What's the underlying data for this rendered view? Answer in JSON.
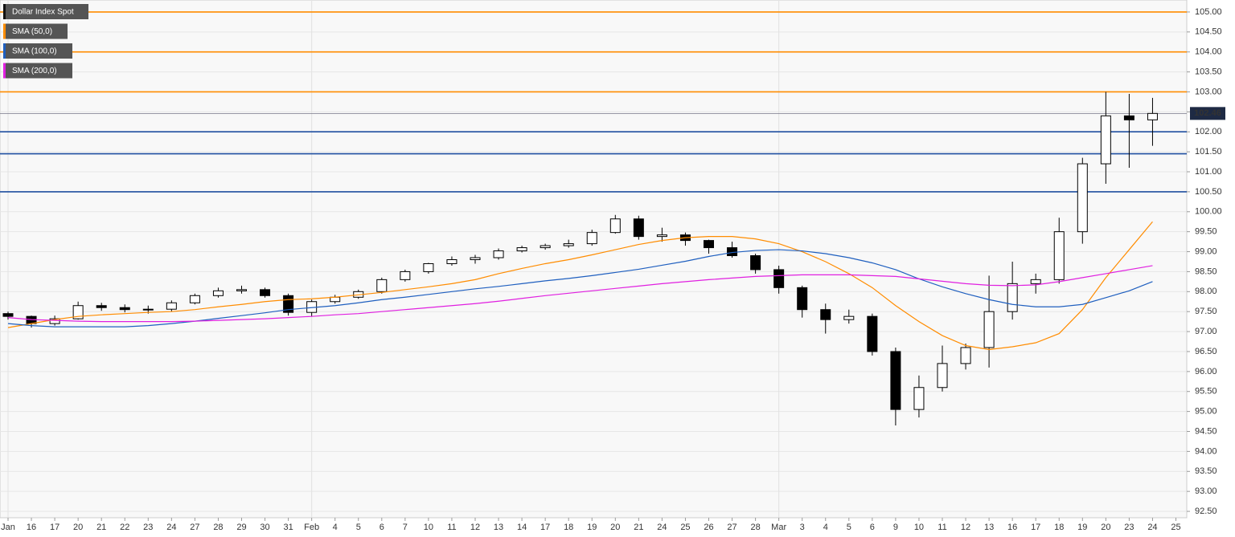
{
  "chart_data": {
    "type": "candlestick",
    "categories": [
      "Jan",
      "16",
      "17",
      "20",
      "21",
      "22",
      "23",
      "24",
      "27",
      "28",
      "29",
      "30",
      "31",
      "Feb",
      "4",
      "5",
      "6",
      "7",
      "10",
      "11",
      "12",
      "13",
      "14",
      "17",
      "18",
      "19",
      "20",
      "21",
      "24",
      "25",
      "26",
      "27",
      "28",
      "Mar",
      "3",
      "4",
      "5",
      "6",
      "9",
      "10",
      "11",
      "12",
      "13",
      "16",
      "17",
      "18",
      "19",
      "20",
      "23",
      "24",
      "25"
    ],
    "series": [
      {
        "name": "Dollar Index Spot",
        "color": "#000000",
        "up_color": "#ffffff",
        "down_color": "#000000",
        "open": [
          97.45,
          97.38,
          97.2,
          97.32,
          97.65,
          97.6,
          97.55,
          97.56,
          97.72,
          97.9,
          98.02,
          98.05,
          97.9,
          97.48,
          97.75,
          97.86,
          98.0,
          98.3,
          98.5,
          98.7,
          98.8,
          98.85,
          99.02,
          99.1,
          99.15,
          99.2,
          99.48,
          99.82,
          99.38,
          99.42,
          99.28,
          99.1,
          98.9,
          98.55,
          98.1,
          97.55,
          97.3,
          97.38,
          96.5,
          95.05,
          95.6,
          96.2,
          96.6,
          97.5,
          98.2,
          98.3,
          99.5,
          101.2,
          102.4,
          102.3,
          null
        ],
        "high": [
          97.5,
          97.4,
          97.4,
          97.75,
          97.72,
          97.68,
          97.65,
          97.78,
          97.95,
          98.1,
          98.15,
          98.1,
          97.95,
          97.8,
          97.92,
          98.05,
          98.35,
          98.55,
          98.72,
          98.88,
          98.92,
          99.08,
          99.15,
          99.2,
          99.3,
          99.55,
          99.92,
          99.9,
          99.6,
          99.48,
          99.3,
          99.25,
          98.95,
          98.65,
          98.15,
          97.7,
          97.55,
          97.45,
          96.6,
          95.9,
          96.65,
          96.7,
          98.4,
          98.75,
          98.45,
          99.85,
          101.35,
          103.0,
          102.95,
          102.85,
          null
        ],
        "low": [
          97.3,
          97.1,
          97.15,
          97.3,
          97.52,
          97.48,
          97.45,
          97.5,
          97.68,
          97.85,
          97.95,
          97.85,
          97.4,
          97.38,
          97.7,
          97.82,
          97.95,
          98.25,
          98.45,
          98.65,
          98.7,
          98.8,
          98.98,
          99.05,
          99.1,
          99.15,
          99.45,
          99.3,
          99.25,
          99.15,
          98.95,
          98.85,
          98.45,
          97.95,
          97.35,
          96.95,
          97.2,
          96.4,
          94.65,
          94.85,
          95.5,
          96.05,
          96.1,
          97.3,
          97.95,
          98.2,
          99.2,
          100.7,
          101.1,
          101.65,
          null
        ],
        "close": [
          97.38,
          97.2,
          97.32,
          97.65,
          97.6,
          97.55,
          97.56,
          97.72,
          97.9,
          98.02,
          98.05,
          97.9,
          97.48,
          97.75,
          97.86,
          98.0,
          98.3,
          98.5,
          98.7,
          98.8,
          98.85,
          99.02,
          99.1,
          99.15,
          99.2,
          99.48,
          99.82,
          99.38,
          99.42,
          99.28,
          99.1,
          98.9,
          98.55,
          98.1,
          97.55,
          97.3,
          97.38,
          96.5,
          95.05,
          95.6,
          96.2,
          96.6,
          97.5,
          98.2,
          98.3,
          99.5,
          101.2,
          102.4,
          102.3,
          102.46,
          null
        ]
      },
      {
        "name": "SMA (50,0)",
        "color": "#ff8c00",
        "values": [
          97.1,
          97.2,
          97.3,
          97.38,
          97.42,
          97.45,
          97.48,
          97.5,
          97.55,
          97.62,
          97.68,
          97.75,
          97.8,
          97.82,
          97.86,
          97.92,
          97.98,
          98.05,
          98.12,
          98.2,
          98.3,
          98.45,
          98.58,
          98.7,
          98.8,
          98.92,
          99.05,
          99.18,
          99.28,
          99.35,
          99.38,
          99.38,
          99.32,
          99.2,
          99.0,
          98.75,
          98.45,
          98.1,
          97.65,
          97.25,
          96.9,
          96.65,
          96.55,
          96.62,
          96.72,
          96.95,
          97.55,
          98.35,
          99.05,
          99.75,
          null
        ]
      },
      {
        "name": "SMA (100,0)",
        "color": "#1f5fbf",
        "values": [
          97.2,
          97.15,
          97.12,
          97.12,
          97.12,
          97.12,
          97.15,
          97.2,
          97.26,
          97.33,
          97.4,
          97.47,
          97.55,
          97.6,
          97.65,
          97.72,
          97.8,
          97.86,
          97.93,
          98.0,
          98.07,
          98.13,
          98.2,
          98.27,
          98.33,
          98.4,
          98.48,
          98.56,
          98.66,
          98.76,
          98.88,
          98.98,
          99.03,
          99.05,
          99.02,
          98.95,
          98.85,
          98.72,
          98.55,
          98.32,
          98.12,
          97.95,
          97.8,
          97.68,
          97.62,
          97.62,
          97.68,
          97.85,
          98.02,
          98.25,
          null
        ]
      },
      {
        "name": "SMA (200,0)",
        "color": "#e020e0",
        "values": [
          97.35,
          97.3,
          97.28,
          97.26,
          97.25,
          97.25,
          97.25,
          97.25,
          97.26,
          97.28,
          97.3,
          97.32,
          97.35,
          97.38,
          97.42,
          97.45,
          97.5,
          97.55,
          97.6,
          97.65,
          97.7,
          97.76,
          97.83,
          97.9,
          97.96,
          98.02,
          98.08,
          98.14,
          98.2,
          98.25,
          98.3,
          98.34,
          98.38,
          98.4,
          98.42,
          98.42,
          98.42,
          98.4,
          98.38,
          98.32,
          98.26,
          98.2,
          98.16,
          98.15,
          98.17,
          98.25,
          98.35,
          98.45,
          98.55,
          98.65,
          null
        ]
      }
    ],
    "levels": [
      {
        "value": 105,
        "color": "#ff8c00"
      },
      {
        "value": 104,
        "color": "#ff8c00"
      },
      {
        "value": 103,
        "color": "#ff8c00"
      },
      {
        "value": 102,
        "color": "#1f4fa0"
      },
      {
        "value": 101.45,
        "color": "#1f4fa0"
      },
      {
        "value": 100.5,
        "color": "#1f4fa0"
      }
    ],
    "last_price": 102.46,
    "ylim": [
      92.34,
      105.3
    ],
    "yticks": [
      {
        "value": 92.5,
        "label": "92.50"
      },
      {
        "value": 93,
        "label": "93.00"
      },
      {
        "value": 93.5,
        "label": "93.50"
      },
      {
        "value": 94,
        "label": "94.00"
      },
      {
        "value": 94.5,
        "label": "94.50"
      },
      {
        "value": 95,
        "label": "95.00"
      },
      {
        "value": 95.5,
        "label": "95.50"
      },
      {
        "value": 96,
        "label": "96.00"
      },
      {
        "value": 96.5,
        "label": "96.50"
      },
      {
        "value": 97,
        "label": "97.00"
      },
      {
        "value": 97.5,
        "label": "97.50"
      },
      {
        "value": 98,
        "label": "98.00"
      },
      {
        "value": 98.5,
        "label": "98.50"
      },
      {
        "value": 99,
        "label": "99.00"
      },
      {
        "value": 99.5,
        "label": "99.50"
      },
      {
        "value": 100,
        "label": "100.00"
      },
      {
        "value": 100.5,
        "label": "100.50"
      },
      {
        "value": 101,
        "label": "101.00"
      },
      {
        "value": 101.5,
        "label": "101.50"
      },
      {
        "value": 102,
        "label": "102.00"
      },
      {
        "value": 102.5,
        "label": "102.50"
      },
      {
        "value": 103,
        "label": "103.00"
      },
      {
        "value": 103.5,
        "label": "103.50"
      },
      {
        "value": 104,
        "label": "104.00"
      },
      {
        "value": 104.5,
        "label": "104.50"
      },
      {
        "value": 105,
        "label": "105.00"
      }
    ],
    "grid": true
  }
}
